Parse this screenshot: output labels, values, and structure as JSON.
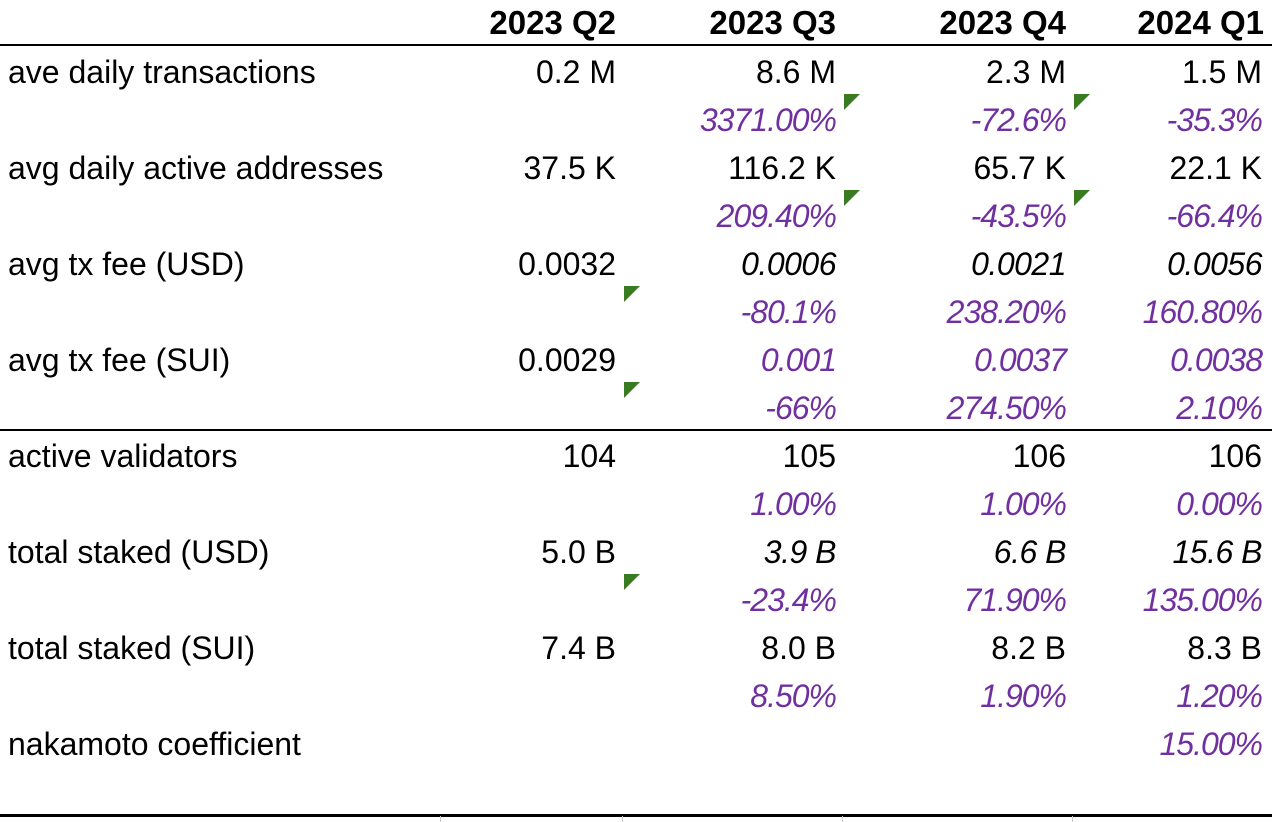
{
  "columns": [
    "2023 Q2",
    "2023 Q3",
    "2023 Q4",
    "2024 Q1"
  ],
  "rows": [
    {
      "label": "ave daily transactions",
      "values": [
        "0.2 M",
        "8.6 M",
        "2.3 M",
        "1.5 M"
      ],
      "changes": [
        "",
        "3371.00%",
        "-72.6%",
        "-35.3%"
      ]
    },
    {
      "label": "avg daily active addresses",
      "values": [
        "37.5 K",
        "116.2 K",
        "65.7 K",
        "22.1 K"
      ],
      "changes": [
        "",
        "209.40%",
        "-43.5%",
        "-66.4%"
      ]
    },
    {
      "label": "avg tx fee (USD)",
      "values": [
        "0.0032",
        "0.0006",
        "0.0021",
        "0.0056"
      ],
      "changes": [
        "",
        "-80.1%",
        "238.20%",
        "160.80%"
      ]
    },
    {
      "label": "avg tx fee (SUI)",
      "values": [
        "0.0029",
        "0.001",
        "0.0037",
        "0.0038"
      ],
      "changes": [
        "",
        "-66%",
        "274.50%",
        "2.10%"
      ]
    },
    {
      "label": "active validators",
      "values": [
        "104",
        "105",
        "106",
        "106"
      ],
      "changes": [
        "",
        "1.00%",
        "1.00%",
        "0.00%"
      ]
    },
    {
      "label": "total staked (USD)",
      "values": [
        "5.0 B",
        "3.9 B",
        "6.6 B",
        "15.6 B"
      ],
      "changes": [
        "",
        "-23.4%",
        "71.90%",
        "135.00%"
      ]
    },
    {
      "label": "total staked (SUI)",
      "values": [
        "7.4 B",
        "8.0 B",
        "8.2 B",
        "8.3 B"
      ],
      "changes": [
        "",
        "8.50%",
        "1.90%",
        "1.20%"
      ]
    },
    {
      "label": "nakamoto coefficient",
      "values": [
        "",
        "",
        "",
        "15.00%"
      ],
      "changes": [
        "",
        "",
        "",
        ""
      ]
    }
  ],
  "colors": {
    "percent_text": "#7030a0",
    "comment_marker": "#3a7a22",
    "grid_line": "#000000"
  }
}
